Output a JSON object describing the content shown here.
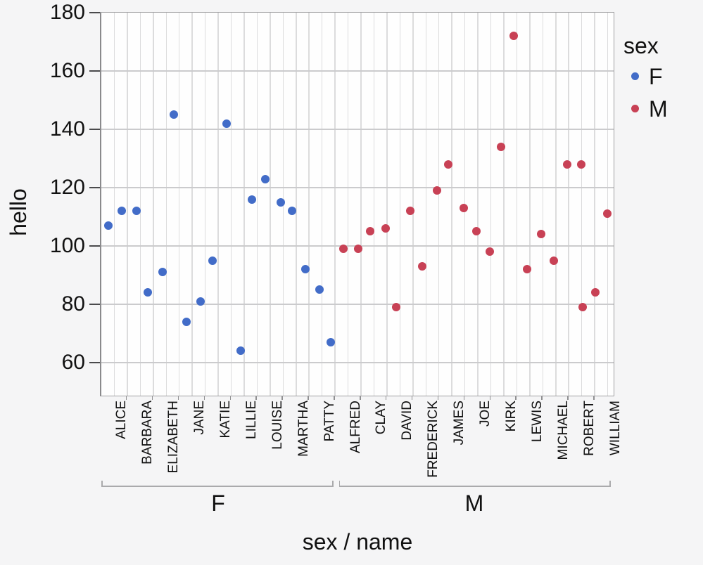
{
  "chart_data": {
    "type": "scatter",
    "title": "",
    "xlabel": "sex / name",
    "ylabel": "hello",
    "yticks": [
      180,
      160,
      140,
      120,
      100,
      80,
      60
    ],
    "ylim": [
      50,
      180
    ],
    "grid": "on",
    "legend": {
      "title": "sex",
      "position": "right",
      "entries": [
        {
          "label": "F",
          "color": "#426CC8"
        },
        {
          "label": "M",
          "color": "#C84155"
        }
      ]
    },
    "colors": {
      "F": "#426CC8",
      "M": "#C84155"
    },
    "groups": [
      {
        "sex": "F",
        "names": [
          {
            "name": "ALICE",
            "points": [
              {
                "value": 107,
                "dx": -8.75
              },
              {
                "value": 112,
                "dx": 10.55
              }
            ]
          },
          {
            "name": "BARBARA",
            "points": [
              {
                "value": 112,
                "dx": -5.65
              },
              {
                "value": 84,
                "dx": 10.35
              }
            ]
          },
          {
            "name": "ELIZABETH",
            "points": [
              {
                "value": 91,
                "dx": -5.55
              },
              {
                "value": 145,
                "dx": 10.75
              }
            ]
          },
          {
            "name": "JANE",
            "points": [
              {
                "value": 74,
                "dx": -7.85
              },
              {
                "value": 81,
                "dx": 11.85
              }
            ]
          },
          {
            "name": "KATIE",
            "points": [
              {
                "value": 95,
                "dx": -7.75
              },
              {
                "value": 142,
                "dx": 11.95
              }
            ]
          },
          {
            "name": "LILLIE",
            "points": [
              {
                "value": 64,
                "dx": -4.95
              },
              {
                "value": 116,
                "dx": 11.35
              }
            ]
          },
          {
            "name": "LOUISE",
            "points": [
              {
                "value": 123,
                "dx": -6.85
              },
              {
                "value": 115,
                "dx": 14.85
              }
            ]
          },
          {
            "name": "MARTHA",
            "points": [
              {
                "value": 112,
                "dx": -6.05
              },
              {
                "value": 92,
                "dx": 12.95
              }
            ]
          },
          {
            "name": "PATTY",
            "points": [
              {
                "value": 85,
                "dx": -3.95
              },
              {
                "value": 67,
                "dx": 12.05
              }
            ]
          }
        ]
      },
      {
        "sex": "M",
        "names": [
          {
            "name": "ALFRED",
            "points": [
              {
                "value": 99,
                "dx": -6.55
              },
              {
                "value": 99,
                "dx": 14.15
              }
            ]
          },
          {
            "name": "CLAY",
            "points": [
              {
                "value": 105,
                "dx": -5.15
              },
              {
                "value": 106,
                "dx": 16.55
              }
            ]
          },
          {
            "name": "DAVID",
            "points": [
              {
                "value": 79,
                "dx": -5.35
              },
              {
                "value": 112,
                "dx": 14.65
              }
            ]
          },
          {
            "name": "FREDERICK",
            "points": [
              {
                "value": 93,
                "dx": -4.95
              },
              {
                "value": 119,
                "dx": 15.75
              }
            ]
          },
          {
            "name": "JAMES",
            "points": [
              {
                "value": 128,
                "dx": -5.15
              },
              {
                "value": 113,
                "dx": 16.55
              }
            ]
          },
          {
            "name": "JOE",
            "points": [
              {
                "value": 105,
                "dx": -2.05
              },
              {
                "value": 98,
                "dx": 16.95
              }
            ]
          },
          {
            "name": "KIRK",
            "points": [
              {
                "value": 134,
                "dx": -3.95
              },
              {
                "value": 172,
                "dx": 13.75
              }
            ]
          },
          {
            "name": "LEWIS",
            "points": [
              {
                "value": 92,
                "dx": -4.15
              },
              {
                "value": 104,
                "dx": 15.85
              }
            ]
          },
          {
            "name": "MICHAEL",
            "points": [
              {
                "value": 95,
                "dx": -2.75
              },
              {
                "value": 128,
                "dx": 15.75
              }
            ]
          },
          {
            "name": "ROBERT",
            "points": [
              {
                "value": 128,
                "dx": -0.65
              },
              {
                "value": 79,
                "dx": 1.05
              }
            ]
          },
          {
            "name": "WILLIAM",
            "points": [
              {
                "value": 84,
                "dx": -17.55
              },
              {
                "value": 111,
                "dx": -0.55
              }
            ]
          }
        ]
      }
    ]
  }
}
